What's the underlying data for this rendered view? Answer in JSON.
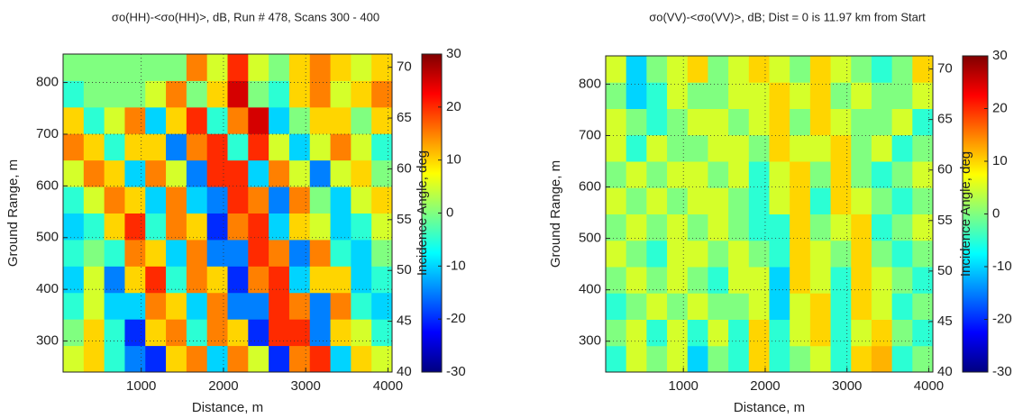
{
  "chart_data": [
    {
      "type": "heatmap",
      "title": "σo(HH)-<σo(HH)>, dB, Run # 478, Scans 300 - 400",
      "x_label": "Distance, m",
      "y_label": "Ground Range, m",
      "y2_label": "Incidence Angle, deg",
      "xlim": [
        50,
        4050
      ],
      "xticks": [
        1000,
        2000,
        3000,
        4000
      ],
      "ylim": [
        240,
        855
      ],
      "yticks": [
        300,
        400,
        500,
        600,
        700,
        800
      ],
      "y2lim": [
        40,
        71.3
      ],
      "y2ticks": [
        40,
        45,
        50,
        55,
        60,
        65,
        70
      ],
      "clim": [
        -30,
        30
      ],
      "cticks": [
        30,
        20,
        10,
        0,
        -10,
        -20,
        -30
      ],
      "colormap": "jet",
      "grid": true,
      "z": [
        [
          5,
          10,
          -5,
          -15,
          -20,
          10,
          15,
          -10,
          15,
          5,
          -20,
          15,
          20,
          -10,
          10,
          5
        ],
        [
          0,
          10,
          -5,
          -20,
          10,
          15,
          -5,
          15,
          10,
          -20,
          20,
          20,
          -15,
          10,
          5,
          -5
        ],
        [
          -5,
          5,
          -10,
          -10,
          15,
          10,
          -10,
          15,
          -15,
          -15,
          20,
          15,
          -15,
          15,
          -5,
          -10
        ],
        [
          -10,
          5,
          -15,
          10,
          20,
          -5,
          15,
          10,
          -20,
          15,
          20,
          -10,
          10,
          10,
          -10,
          -5
        ],
        [
          -5,
          0,
          -5,
          15,
          10,
          -10,
          15,
          -15,
          -15,
          20,
          15,
          -15,
          15,
          -5,
          -10,
          0
        ],
        [
          -10,
          -5,
          10,
          20,
          -5,
          15,
          10,
          -20,
          15,
          20,
          -10,
          10,
          5,
          -10,
          -5,
          5
        ],
        [
          -5,
          5,
          15,
          10,
          -10,
          15,
          -10,
          -15,
          20,
          15,
          -15,
          15,
          0,
          -10,
          5,
          10
        ],
        [
          5,
          15,
          10,
          -10,
          15,
          5,
          -15,
          20,
          20,
          -10,
          15,
          5,
          -15,
          5,
          10,
          0
        ],
        [
          15,
          10,
          -5,
          10,
          10,
          -15,
          15,
          20,
          -5,
          20,
          5,
          -10,
          5,
          15,
          5,
          -5
        ],
        [
          10,
          -5,
          5,
          15,
          -10,
          10,
          20,
          -5,
          15,
          25,
          -10,
          0,
          10,
          10,
          0,
          10
        ],
        [
          -5,
          0,
          0,
          0,
          5,
          15,
          0,
          10,
          25,
          0,
          -5,
          10,
          15,
          5,
          10,
          15
        ],
        [
          0,
          0,
          0,
          0,
          0,
          0,
          15,
          5,
          20,
          5,
          0,
          10,
          15,
          10,
          5,
          10
        ]
      ]
    },
    {
      "type": "heatmap",
      "title": "σo(VV)-<σo(VV)>, dB; Dist = 0 is 11.97 km from Start",
      "x_label": "Distance, m",
      "y_label": "Ground Range, m",
      "y2_label": "Incidence Angle, deg",
      "xlim": [
        50,
        4050
      ],
      "xticks": [
        1000,
        2000,
        3000,
        4000
      ],
      "ylim": [
        240,
        855
      ],
      "yticks": [
        300,
        400,
        500,
        600,
        700,
        800
      ],
      "y2lim": [
        40,
        71.3
      ],
      "y2ticks": [
        40,
        45,
        50,
        55,
        60,
        65,
        70
      ],
      "clim": [
        -30,
        30
      ],
      "cticks": [
        30,
        20,
        10,
        0,
        -10,
        -20,
        -30
      ],
      "colormap": "jet",
      "grid": true,
      "z": [
        [
          -5,
          5,
          0,
          5,
          -10,
          0,
          -5,
          10,
          -5,
          0,
          5,
          -5,
          10,
          12,
          -5,
          0
        ],
        [
          0,
          5,
          -5,
          5,
          -5,
          5,
          -5,
          10,
          -5,
          5,
          10,
          -5,
          5,
          10,
          0,
          -5
        ],
        [
          -5,
          0,
          5,
          0,
          5,
          0,
          0,
          5,
          -10,
          5,
          10,
          -5,
          10,
          5,
          -5,
          0
        ],
        [
          0,
          5,
          0,
          5,
          0,
          -5,
          5,
          5,
          -10,
          10,
          5,
          -5,
          10,
          5,
          0,
          -5
        ],
        [
          5,
          0,
          -5,
          5,
          5,
          0,
          5,
          0,
          -5,
          10,
          5,
          0,
          10,
          0,
          -5,
          0
        ],
        [
          0,
          5,
          0,
          5,
          0,
          5,
          0,
          -5,
          -5,
          10,
          0,
          5,
          10,
          -5,
          0,
          5
        ],
        [
          5,
          0,
          5,
          0,
          5,
          5,
          0,
          -5,
          5,
          10,
          -5,
          10,
          5,
          0,
          -5,
          0
        ],
        [
          0,
          5,
          0,
          5,
          5,
          0,
          5,
          -5,
          5,
          10,
          0,
          10,
          0,
          -5,
          0,
          5
        ],
        [
          5,
          -5,
          5,
          0,
          0,
          5,
          5,
          0,
          10,
          5,
          5,
          10,
          0,
          5,
          -5,
          0
        ],
        [
          5,
          0,
          -5,
          0,
          5,
          5,
          0,
          5,
          10,
          0,
          10,
          5,
          0,
          0,
          5,
          -5
        ],
        [
          0,
          -10,
          -5,
          5,
          0,
          0,
          5,
          5,
          10,
          5,
          10,
          0,
          5,
          0,
          0,
          5
        ],
        [
          5,
          -10,
          0,
          5,
          10,
          0,
          5,
          10,
          5,
          0,
          10,
          5,
          0,
          -5,
          0,
          10
        ]
      ]
    }
  ]
}
